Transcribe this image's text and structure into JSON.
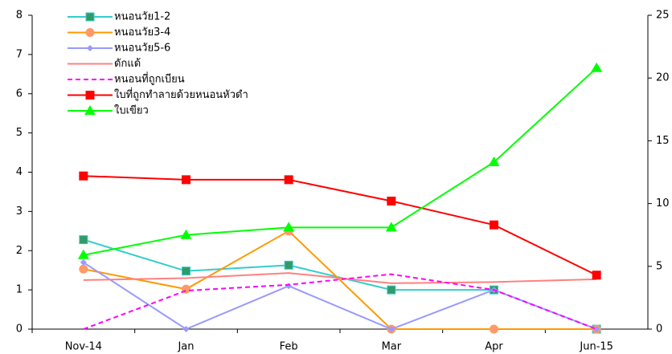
{
  "chart_data": {
    "type": "line",
    "categories": [
      "Nov-14",
      "Jan",
      "Feb",
      "Mar",
      "Apr",
      "Jun-15"
    ],
    "ylim": [
      0,
      8
    ],
    "yticks": [
      0,
      1,
      2,
      3,
      4,
      5,
      6,
      7,
      8
    ],
    "y2lim": [
      0,
      25
    ],
    "y2ticks": [
      0,
      5,
      10,
      15,
      20,
      25
    ],
    "series": [
      {
        "name": "หนอนวัย1-2",
        "color": "#33CCCC",
        "marker": "square",
        "marker_color": "#339966",
        "values": [
          2.28,
          1.48,
          1.63,
          1.0,
          1.0,
          0
        ]
      },
      {
        "name": "หนอนวัย3-4",
        "color": "#FF9900",
        "marker": "circle",
        "marker_color": "#FF9966",
        "values": [
          1.53,
          1.02,
          2.5,
          0,
          0,
          0
        ]
      },
      {
        "name": "หนอนวัย5-6",
        "color": "#9999FF",
        "marker": "diamond",
        "marker_color": "#9999FF",
        "values": [
          1.7,
          0,
          1.1,
          0,
          1.0,
          0
        ]
      },
      {
        "name": "ดักแด้",
        "color": "#FF8080",
        "values": [
          1.25,
          1.3,
          1.43,
          1.17,
          1.2,
          1.27
        ]
      },
      {
        "name": "หนอนที่ถูกเบียน",
        "color": "#FF00FF",
        "dash": true,
        "values": [
          0,
          0.98,
          1.13,
          1.4,
          1.0,
          0
        ]
      },
      {
        "name": "ใบที่ถูกทำลายด้วยหนอนหัวดำ",
        "color": "#FF0000",
        "marker": "square",
        "marker_color": "#FF0000",
        "axis": "y2",
        "values": [
          12.2,
          11.9,
          11.9,
          10.2,
          8.3,
          4.3
        ]
      },
      {
        "name": "ใบเขียว",
        "color": "#00FF00",
        "marker": "triangle",
        "marker_color": "#00FF00",
        "axis": "y2",
        "values": [
          5.9,
          7.5,
          8.1,
          8.1,
          13.3,
          20.8
        ]
      }
    ]
  }
}
